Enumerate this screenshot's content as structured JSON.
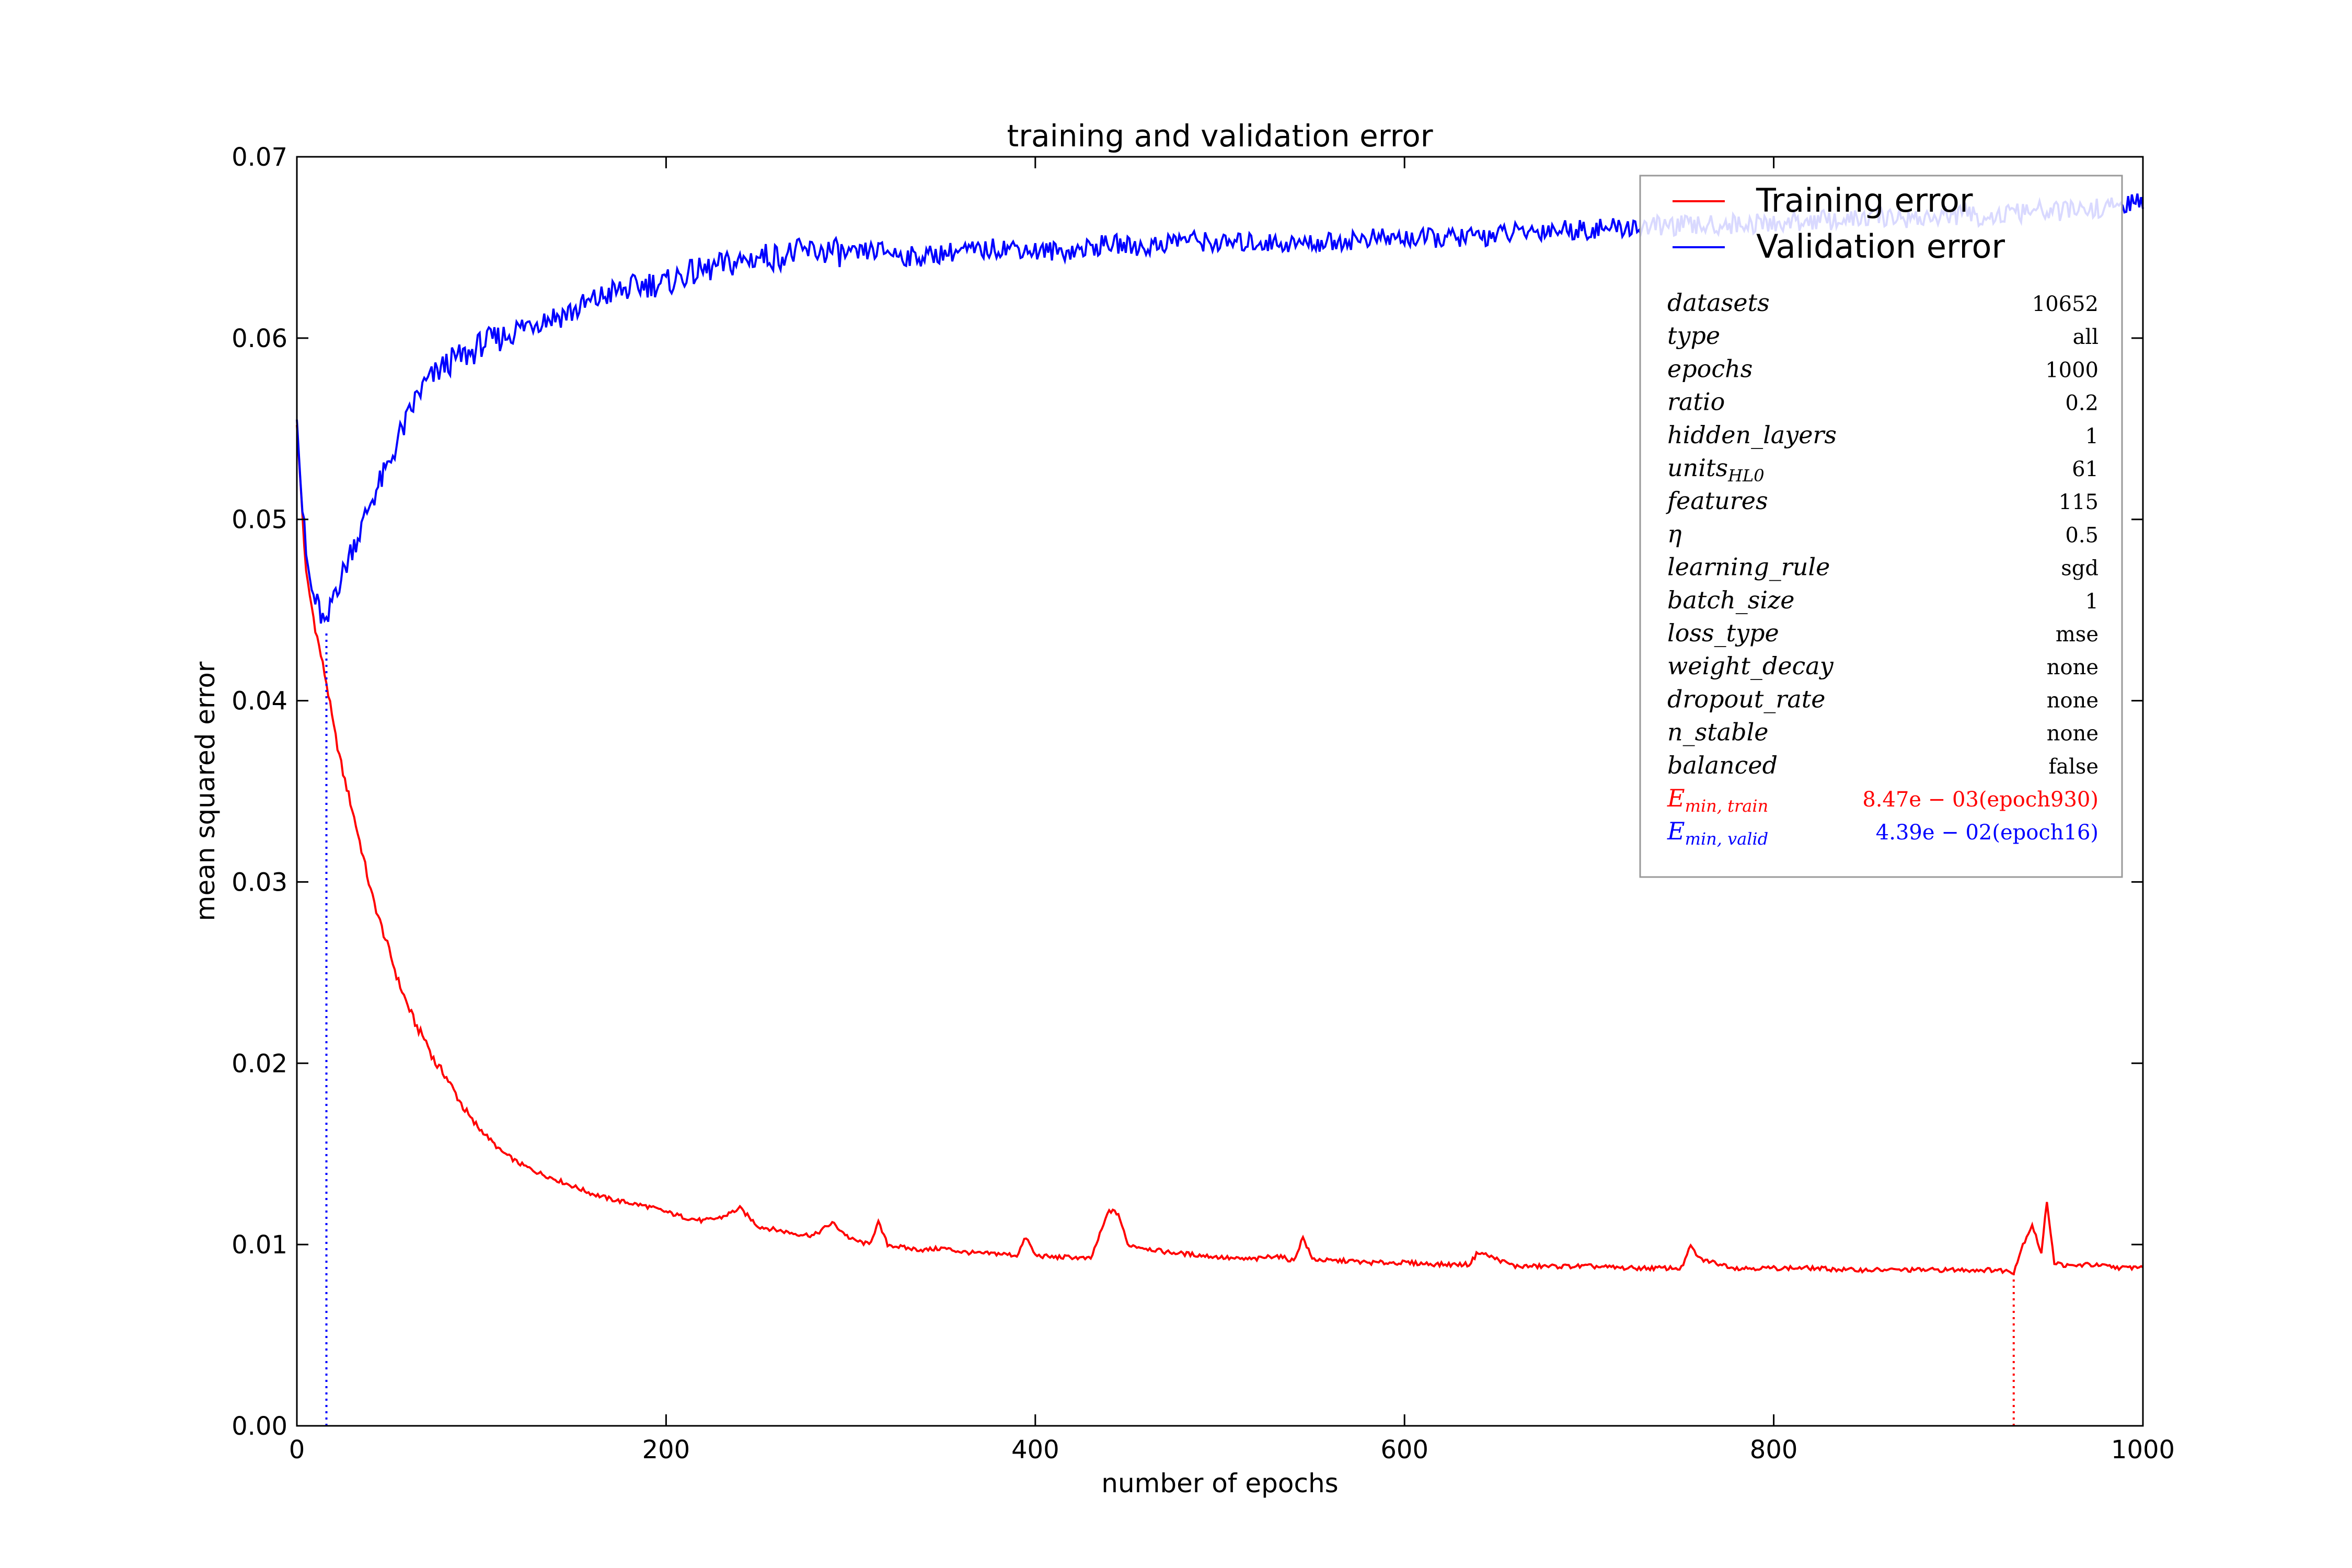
{
  "chart_data": {
    "type": "line",
    "title": "training and validation error",
    "xlabel": "number of epochs",
    "ylabel": "mean squared error",
    "xlim": [
      0,
      1000
    ],
    "ylim": [
      0,
      0.07
    ],
    "xticks": [
      0,
      200,
      400,
      600,
      800,
      1000
    ],
    "xtick_labels": [
      "0",
      "200",
      "400",
      "600",
      "800",
      "1000"
    ],
    "yticks": [
      0,
      0.01,
      0.02,
      0.03,
      0.04,
      0.05,
      0.06,
      0.07
    ],
    "ytick_labels": [
      "0.00",
      "0.01",
      "0.02",
      "0.03",
      "0.04",
      "0.05",
      "0.06",
      "0.07"
    ],
    "grid": false,
    "legend_position": "top-right",
    "series": [
      {
        "name": "Training error",
        "color": "#ff0000",
        "x": [
          0,
          5,
          10,
          16,
          20,
          25,
          30,
          35,
          40,
          45,
          50,
          55,
          60,
          65,
          70,
          75,
          80,
          85,
          90,
          95,
          100,
          110,
          120,
          130,
          140,
          150,
          160,
          170,
          180,
          190,
          200,
          210,
          220,
          230,
          240,
          250,
          260,
          270,
          280,
          290,
          300,
          310,
          315,
          320,
          330,
          340,
          350,
          360,
          370,
          380,
          390,
          395,
          400,
          410,
          420,
          430,
          440,
          445,
          450,
          460,
          470,
          480,
          490,
          500,
          510,
          520,
          530,
          540,
          545,
          550,
          560,
          570,
          580,
          600,
          620,
          635,
          640,
          660,
          680,
          700,
          720,
          740,
          750,
          755,
          760,
          780,
          800,
          820,
          840,
          860,
          880,
          900,
          920,
          930,
          935,
          940,
          945,
          948,
          952,
          960,
          970,
          980,
          990,
          1000
        ],
        "values": [
          0.0552,
          0.047,
          0.044,
          0.041,
          0.0385,
          0.036,
          0.034,
          0.0318,
          0.0295,
          0.0278,
          0.0262,
          0.0245,
          0.0232,
          0.022,
          0.0212,
          0.02,
          0.0194,
          0.0185,
          0.0176,
          0.0168,
          0.0163,
          0.0152,
          0.0145,
          0.014,
          0.0136,
          0.0132,
          0.0128,
          0.0125,
          0.0123,
          0.0121,
          0.0118,
          0.0115,
          0.0113,
          0.0115,
          0.012,
          0.011,
          0.0108,
          0.0106,
          0.0105,
          0.0112,
          0.0103,
          0.01,
          0.0112,
          0.01,
          0.0098,
          0.0097,
          0.0098,
          0.0096,
          0.0095,
          0.0095,
          0.0094,
          0.0104,
          0.0094,
          0.0093,
          0.0093,
          0.0092,
          0.0119,
          0.0117,
          0.01,
          0.0098,
          0.0096,
          0.0095,
          0.0094,
          0.0093,
          0.0092,
          0.0092,
          0.0094,
          0.0091,
          0.0104,
          0.0092,
          0.0091,
          0.0091,
          0.009,
          0.009,
          0.0089,
          0.0089,
          0.0096,
          0.0088,
          0.0088,
          0.0088,
          0.0087,
          0.0087,
          0.0087,
          0.0099,
          0.0092,
          0.0087,
          0.0087,
          0.0087,
          0.0086,
          0.0086,
          0.0086,
          0.0086,
          0.0086,
          0.0085,
          0.01,
          0.0111,
          0.0095,
          0.0124,
          0.009,
          0.0088,
          0.0089,
          0.0088,
          0.0087,
          0.0088
        ]
      },
      {
        "name": "Validation error",
        "color": "#0000ff",
        "x": [
          0,
          2,
          5,
          8,
          12,
          16,
          20,
          25,
          30,
          35,
          40,
          45,
          50,
          55,
          60,
          65,
          70,
          75,
          80,
          85,
          90,
          95,
          100,
          110,
          120,
          130,
          140,
          150,
          160,
          170,
          180,
          190,
          200,
          210,
          220,
          230,
          240,
          250,
          260,
          270,
          280,
          290,
          300,
          310,
          320,
          330,
          340,
          350,
          360,
          370,
          380,
          390,
          400,
          420,
          440,
          460,
          480,
          500,
          520,
          540,
          560,
          580,
          600,
          620,
          640,
          660,
          680,
          700,
          720,
          740,
          760,
          780,
          800,
          820,
          840,
          860,
          880,
          900,
          920,
          940,
          960,
          980,
          1000
        ],
        "values": [
          0.0555,
          0.052,
          0.048,
          0.046,
          0.045,
          0.0439,
          0.046,
          0.047,
          0.0485,
          0.0495,
          0.051,
          0.052,
          0.053,
          0.0545,
          0.0555,
          0.0568,
          0.0575,
          0.058,
          0.0585,
          0.0588,
          0.059,
          0.0592,
          0.0597,
          0.06,
          0.0605,
          0.061,
          0.0612,
          0.0615,
          0.062,
          0.0625,
          0.0627,
          0.063,
          0.063,
          0.0635,
          0.0637,
          0.064,
          0.0642,
          0.0645,
          0.0645,
          0.0647,
          0.0648,
          0.0648,
          0.0645,
          0.0648,
          0.0648,
          0.0645,
          0.0645,
          0.0647,
          0.0648,
          0.0648,
          0.065,
          0.065,
          0.0648,
          0.0648,
          0.0652,
          0.065,
          0.0655,
          0.0652,
          0.0653,
          0.0652,
          0.0653,
          0.0655,
          0.0655,
          0.0655,
          0.0656,
          0.0658,
          0.066,
          0.066,
          0.0661,
          0.0662,
          0.0662,
          0.0663,
          0.0663,
          0.0665,
          0.0665,
          0.0667,
          0.0666,
          0.0668,
          0.0667,
          0.067,
          0.067,
          0.0672,
          0.0675
        ]
      }
    ],
    "markers": [
      {
        "name": "min-valid",
        "x": 16,
        "y": 0.0439,
        "color": "#0000ff",
        "style": "dotted"
      },
      {
        "name": "min-train",
        "x": 930,
        "y": 0.00847,
        "color": "#ff0000",
        "style": "dotted"
      }
    ],
    "annotation_table": {
      "rows": [
        {
          "key": "datasets",
          "value": "10652"
        },
        {
          "key": "type",
          "value": "all"
        },
        {
          "key": "epochs",
          "value": "1000"
        },
        {
          "key": "ratio",
          "value": "0.2"
        },
        {
          "key": "hidden_layers",
          "value": "1"
        },
        {
          "key": "units",
          "key_sub": "HL0",
          "value": "61"
        },
        {
          "key": "features",
          "value": "115"
        },
        {
          "key": "η",
          "value": "0.5"
        },
        {
          "key": "learning_rule",
          "value": "sgd"
        },
        {
          "key": "batch_size",
          "value": "1"
        },
        {
          "key": "loss_type",
          "value": "mse"
        },
        {
          "key": "weight_decay",
          "value": "none"
        },
        {
          "key": "dropout_rate",
          "value": "none"
        },
        {
          "key": "n_stable",
          "value": "none"
        },
        {
          "key": "balanced",
          "value": "false"
        }
      ],
      "extra_rows": [
        {
          "key": "E",
          "key_sub": "min, train",
          "value": "8.47e − 03(epoch930)",
          "color": "#ff0000"
        },
        {
          "key": "E",
          "key_sub": "min, valid",
          "value": "4.39e − 02(epoch16)",
          "color": "#0000ff"
        }
      ]
    }
  }
}
